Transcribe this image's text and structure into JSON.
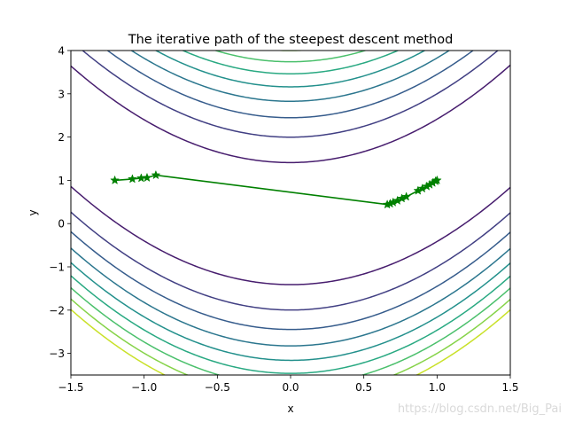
{
  "chart_data": {
    "type": "line",
    "title": "The iterative path of the steepest descent method",
    "xlabel": "x",
    "ylabel": "y",
    "xlim": [
      -1.5,
      1.5
    ],
    "ylim": [
      -3.5,
      4
    ],
    "x_ticks": [
      -1.5,
      -1.0,
      -0.5,
      0.0,
      0.5,
      1.0,
      1.5
    ],
    "x_tick_labels": [
      "−1.5",
      "−1.0",
      "−0.5",
      "0.0",
      "0.5",
      "1.0",
      "1.5"
    ],
    "y_ticks": [
      -3,
      -2,
      -1,
      0,
      1,
      2,
      3,
      4
    ],
    "y_tick_labels": [
      "−3",
      "−2",
      "−1",
      "0",
      "1",
      "2",
      "3",
      "4"
    ],
    "grid": false,
    "contour": {
      "function": "Rosenbrock f(x,y) = (1-x)^2 + 100(y-x^2)^2",
      "colormap": "viridis",
      "levels": [
        200,
        400,
        600,
        800,
        1000,
        1200,
        1400,
        1600,
        1800
      ]
    },
    "series": [
      {
        "color": "#008000",
        "marker": "star",
        "x": [
          -1.2,
          -1.08,
          -1.02,
          -0.98,
          -0.92,
          0.66,
          0.68,
          0.7,
          0.73,
          0.76,
          0.79,
          0.87,
          0.9,
          0.93,
          0.95,
          0.97,
          0.99,
          1.0
        ],
        "y": [
          1.0,
          1.03,
          1.05,
          1.06,
          1.12,
          0.44,
          0.46,
          0.49,
          0.53,
          0.58,
          0.62,
          0.76,
          0.81,
          0.86,
          0.9,
          0.94,
          0.98,
          1.0
        ]
      }
    ]
  },
  "watermark": "https://blog.csdn.net/Big_Pai"
}
